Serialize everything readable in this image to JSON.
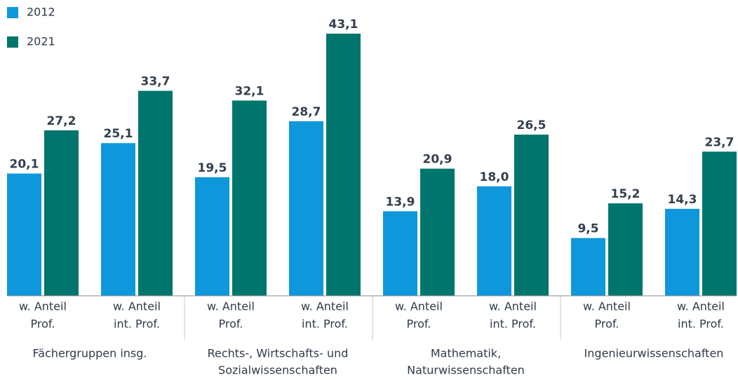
{
  "chart_data": {
    "type": "bar",
    "categories": [
      [
        "w. Anteil",
        "Prof."
      ],
      [
        "w. Anteil",
        "int. Prof."
      ],
      [
        "w. Anteil",
        "Prof."
      ],
      [
        "w. Anteil",
        "int. Prof."
      ],
      [
        "w. Anteil",
        "Prof."
      ],
      [
        "w. Anteil",
        "int. Prof."
      ],
      [
        "w. Anteil",
        "Prof."
      ],
      [
        "w. Anteil",
        "int. Prof."
      ]
    ],
    "groups": [
      [
        "Fächergruppen insg."
      ],
      [
        "Rechts-, Wirtschafts- und",
        "Sozialwissenschaften"
      ],
      [
        "Mathematik,",
        "Naturwissenschaften"
      ],
      [
        "Ingenieurwissenschaften"
      ]
    ],
    "series": [
      {
        "name": "2012",
        "color": "#0f97db",
        "values": [
          20.1,
          25.1,
          19.5,
          28.7,
          13.9,
          18.0,
          9.5,
          14.3
        ],
        "value_labels": [
          "20,1",
          "25,1",
          "19,5",
          "28,7",
          "13,9",
          "18,0",
          "9,5",
          "14,3"
        ]
      },
      {
        "name": "2021",
        "color": "#00756e",
        "values": [
          27.2,
          33.7,
          32.1,
          43.1,
          20.9,
          26.5,
          15.2,
          23.7
        ],
        "value_labels": [
          "27,2",
          "33,7",
          "32,1",
          "43,1",
          "20,9",
          "26,5",
          "15,2",
          "23,7"
        ]
      }
    ],
    "legend": "top-left"
  }
}
